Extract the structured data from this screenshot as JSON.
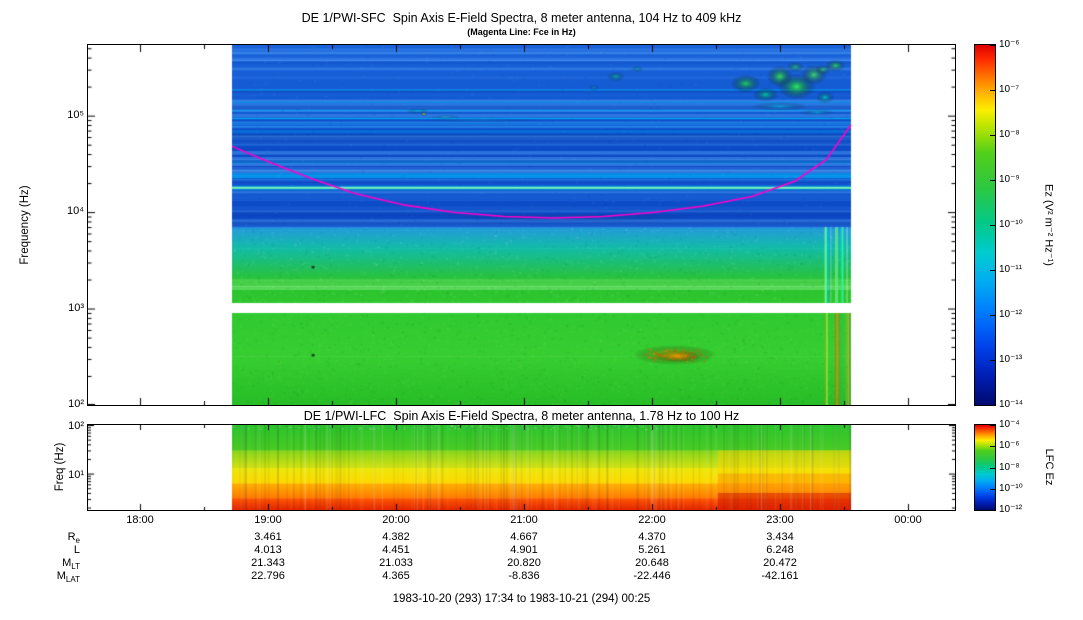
{
  "sfc": {
    "title": "DE 1/PWI-SFC  Spin Axis E-Field Spectra, 8 meter antenna, 104 Hz to 409 kHz",
    "subtitle": "(Magenta Line: Fce in Hz)",
    "ylabel": "Frequency (Hz)",
    "yticks": [
      {
        "label": "10⁵",
        "hz": 100000
      },
      {
        "label": "10⁴",
        "hz": 10000
      },
      {
        "label": "10³",
        "hz": 1000
      },
      {
        "label": "10²",
        "hz": 100
      }
    ],
    "colorbar": {
      "unit": "Ez (V² m⁻² Hz⁻¹)",
      "ticks": [
        "10⁻⁶",
        "10⁻⁷",
        "10⁻⁸",
        "10⁻⁹",
        "10⁻¹⁰",
        "10⁻¹¹",
        "10⁻¹²",
        "10⁻¹³",
        "10⁻¹⁴"
      ]
    }
  },
  "lfc": {
    "title": "DE 1/PWI-LFC  Spin Axis E-Field Spectra, 8 meter antenna, 1.78 Hz to 100 Hz",
    "ylabel": "Freq (Hz)",
    "yticks": [
      {
        "label": "10²",
        "hz": 100
      },
      {
        "label": "10¹",
        "hz": 10
      }
    ],
    "colorbar": {
      "unit": "LFC Ez",
      "ticks": [
        "10⁻⁴",
        "10⁻⁶",
        "10⁻⁸",
        "10⁻¹⁰",
        "10⁻¹²"
      ]
    }
  },
  "xaxis": {
    "ticks": [
      "18:00",
      "19:00",
      "20:00",
      "21:00",
      "22:00",
      "23:00",
      "00:00"
    ]
  },
  "ephemeris": {
    "rows": [
      {
        "base": "R",
        "sub": "e",
        "values": [
          "3.461",
          "4.382",
          "4.667",
          "4.370",
          "3.434"
        ]
      },
      {
        "base": "L",
        "sub": "",
        "values": [
          "4.013",
          "4.451",
          "4.901",
          "5.261",
          "6.248"
        ]
      },
      {
        "base": "M",
        "sub": "LT",
        "values": [
          "21.343",
          "21.033",
          "20.820",
          "20.648",
          "20.472"
        ]
      },
      {
        "base": "M",
        "sub": "LAT",
        "values": [
          "22.796",
          "4.365",
          "-8.836",
          "-22.446",
          "-42.161"
        ]
      }
    ],
    "caption": "1983-10-20 (293) 17:34 to 1983-10-21 (294) 00:25"
  },
  "colors": {
    "background": "#ffffff",
    "axis": "#000000",
    "magenta": "#ff00cc",
    "rainbow_stops": [
      [
        0,
        "#dd0000"
      ],
      [
        0.04,
        "#ff2a00"
      ],
      [
        0.09,
        "#ff7700"
      ],
      [
        0.14,
        "#ffbb00"
      ],
      [
        0.18,
        "#fdee00"
      ],
      [
        0.23,
        "#b5e400"
      ],
      [
        0.3,
        "#52cf1a"
      ],
      [
        0.4,
        "#2bc844"
      ],
      [
        0.5,
        "#00c98c"
      ],
      [
        0.58,
        "#00cbd0"
      ],
      [
        0.66,
        "#00aaf2"
      ],
      [
        0.75,
        "#0077ff"
      ],
      [
        0.84,
        "#0040e8"
      ],
      [
        0.92,
        "#001eb4"
      ],
      [
        1,
        "#000a6e"
      ]
    ]
  },
  "chart_data": [
    {
      "type": "heatmap",
      "title": "DE 1/PWI-SFC  Spin Axis E-Field Spectra, 8 meter antenna, 104 Hz to 409 kHz",
      "subtitle": "(Magenta Line: Fce in Hz)",
      "xlabel": "",
      "ylabel": "Frequency (Hz)",
      "y_scale": "log",
      "ylim_hz": [
        100,
        409000
      ],
      "x_time_span": [
        "17:34",
        "00:25"
      ],
      "x_ticks": [
        "18:00",
        "19:00",
        "20:00",
        "21:00",
        "22:00",
        "23:00",
        "00:00"
      ],
      "data_time_extent": [
        "18:43",
        "23:33"
      ],
      "colorbar": {
        "label": "Ez (V² m⁻² Hz⁻¹)",
        "scale": "log",
        "range": [
          1e-14,
          1e-06
        ]
      },
      "features_text": [
        "Auroral kilometric radiation: bright green/cyan patches 22:20-23:30 above 100 kHz",
        "Continuous narrowband cyan-green emission line near 18 kHz",
        "Blue striated background 7 kHz - 400 kHz",
        "Cyan-to-green hiss band between ~1.1 kHz and 7 kHz",
        "White no-data gap near 1 kHz",
        "Green broadband band 100 Hz - 900 Hz with yellow/orange enhancement near 22:00-22:30 at 250-450 Hz",
        "Magenta line: electron cyclotron frequency Fce, dipping to ~8.7 kHz near 21:00"
      ],
      "fce_line": {
        "color": "#ff00cc",
        "t": [
          0,
          0.06,
          0.13,
          0.2,
          0.28,
          0.36,
          0.44,
          0.52,
          0.6,
          0.68,
          0.76,
          0.84,
          0.91,
          0.96,
          1
        ],
        "hz": [
          48000,
          33000,
          22000,
          15500,
          11800,
          9900,
          9000,
          8700,
          9000,
          9900,
          11500,
          14500,
          21000,
          35000,
          80000
        ]
      },
      "render": {
        "fmin": 100,
        "fmax": 540000,
        "gap": [
          1140,
          900
        ],
        "line_hz": 18000,
        "bands": [
          [
            540000,
            100000,
            "#1a63da",
            "#1157d0"
          ],
          [
            100000,
            20000,
            "#0d4fca",
            "#0c48c4"
          ],
          [
            20000,
            7000,
            "#0e52cc",
            "#0b46c2"
          ],
          [
            7000,
            4200,
            "#259ade",
            "#12bca6"
          ],
          [
            4200,
            1900,
            "#12bca6",
            "#2bc32e"
          ],
          [
            1900,
            1140,
            "#2bc32e",
            "#2fc72f"
          ],
          [
            900,
            320,
            "#30c930",
            "#36ce30"
          ],
          [
            320,
            100,
            "#36ce30",
            "#27bd27"
          ]
        ],
        "blobs": [
          [
            0.83,
            215000,
            15,
            9,
            "#22e055",
            0.85
          ],
          [
            0.862,
            165000,
            13,
            7,
            "#00dd99",
            0.8
          ],
          [
            0.885,
            255000,
            13,
            11,
            "#33ee55",
            0.9
          ],
          [
            0.912,
            200000,
            19,
            13,
            "#2bff4d",
            0.9
          ],
          [
            0.94,
            265000,
            13,
            10,
            "#44ee66",
            0.85
          ],
          [
            0.91,
            320000,
            9,
            5,
            "#22dd66",
            0.7
          ],
          [
            0.975,
            330000,
            10,
            6,
            "#33ee55",
            0.8
          ],
          [
            0.958,
            155000,
            9,
            6,
            "#00ddcc",
            0.8
          ],
          [
            0.955,
            300000,
            8,
            5,
            "#33dd66",
            0.7
          ],
          [
            0.885,
            125000,
            28,
            4,
            "#00ccff",
            0.6
          ],
          [
            0.945,
            108000,
            18,
            3,
            "#00c4ff",
            0.55
          ],
          [
            0.62,
            255000,
            9,
            5,
            "#00cc88",
            0.6
          ],
          [
            0.655,
            305000,
            6,
            3,
            "#00bb99",
            0.55
          ],
          [
            0.585,
            195000,
            5,
            3,
            "#00aadd",
            0.5
          ],
          [
            0.3,
            112000,
            11,
            2.5,
            "#00d0ff",
            0.7
          ],
          [
            0.345,
            97000,
            15,
            2,
            "#22c8f0",
            0.6
          ],
          [
            0.31,
            104000,
            3,
            2,
            "#ffee00",
            0.95
          ],
          [
            0.4,
            90000,
            60,
            2,
            "#00beff",
            0.3
          ],
          [
            0.55,
            8800,
            120,
            4,
            "#2a7ce0",
            0.3
          ],
          [
            0.715,
            330,
            42,
            10,
            "#ffdf00",
            0.8
          ],
          [
            0.72,
            320,
            24,
            6,
            "#ff9500",
            0.85
          ]
        ],
        "dark_specks": [
          [
            0.131,
            2700
          ],
          [
            0.131,
            330
          ]
        ]
      }
    },
    {
      "type": "heatmap",
      "title": "DE 1/PWI-LFC  Spin Axis E-Field Spectra, 8 meter antenna, 1.78 Hz to 100 Hz",
      "ylabel": "Freq (Hz)",
      "y_scale": "log",
      "ylim_hz": [
        1.78,
        100
      ],
      "colorbar": {
        "label": "LFC Ez",
        "scale": "log",
        "range": [
          1e-12,
          0.0001
        ]
      },
      "features_text": [
        "Layered spectrum: green 30-100 Hz, yellow-green 13-30 Hz, yellow 6-13 Hz, orange 3-6 Hz, red below 3 Hz",
        "Intensification (deeper red/orange, yellow extending higher) after ~23:00"
      ],
      "render": {
        "fmin": 1.78,
        "fmax": 100,
        "bands": [
          [
            100,
            30,
            "#2dc52d",
            "#49cb24"
          ],
          [
            30,
            13,
            "#86d61c",
            "#d2e112"
          ],
          [
            13,
            6.3,
            "#ece80a",
            "#ffd800"
          ],
          [
            6.3,
            3.1,
            "#ffb200",
            "#ff7a00"
          ],
          [
            3.1,
            1.78,
            "#ff5800",
            "#e22600"
          ]
        ],
        "right_shift_t": 0.785,
        "right_overlays": [
          [
            30,
            10,
            "rgba(255,215,0,0.45)"
          ],
          [
            10,
            4,
            "rgba(255,140,0,0.45)"
          ],
          [
            4,
            1.78,
            "rgba(215,30,0,0.55)"
          ]
        ]
      }
    },
    {
      "type": "table",
      "name": "orbit-ephemeris",
      "columns": [
        "19:00",
        "20:00",
        "21:00",
        "22:00",
        "23:00"
      ],
      "rows": [
        {
          "label": "Re",
          "values": [
            3.461,
            4.382,
            4.667,
            4.37,
            3.434
          ]
        },
        {
          "label": "L",
          "values": [
            4.013,
            4.451,
            4.901,
            5.261,
            6.248
          ]
        },
        {
          "label": "MLT",
          "values": [
            21.343,
            21.033,
            20.82,
            20.648,
            20.472
          ]
        },
        {
          "label": "MLAT",
          "values": [
            22.796,
            4.365,
            -8.836,
            -22.446,
            -42.161
          ]
        }
      ],
      "caption": "1983-10-20 (293) 17:34 to 1983-10-21 (294) 00:25"
    }
  ]
}
